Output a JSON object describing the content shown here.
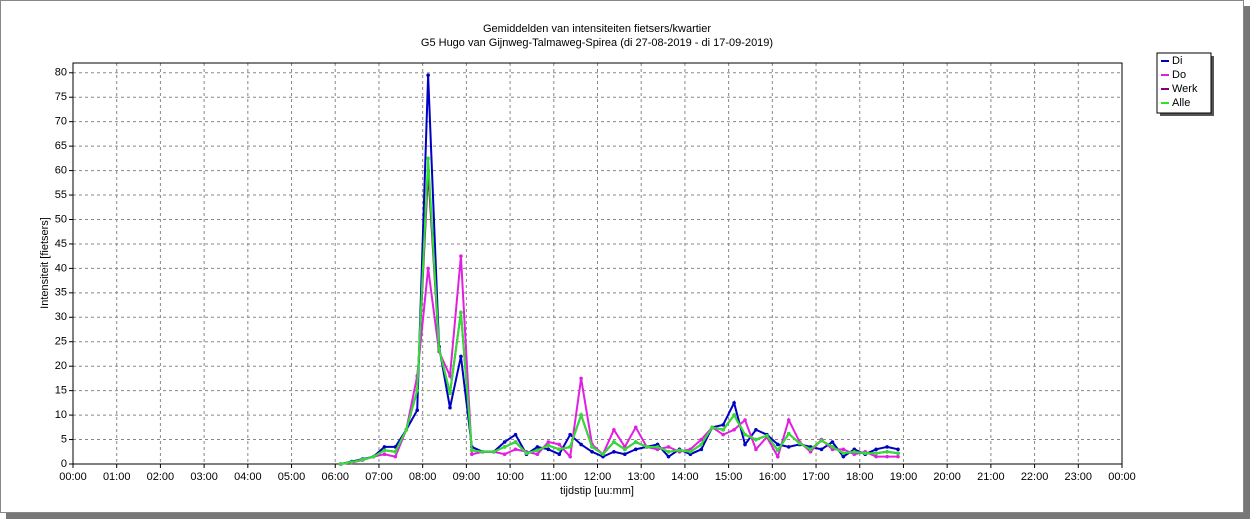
{
  "chart_data": {
    "type": "line",
    "title": "Gemiddelden van intensiteiten fietsers/kwartier",
    "subtitle": "G5 Hugo van Gijnweg-Talmaweg-Spirea (di 27-08-2019 - di 17-09-2019)",
    "xlabel": "tijdstip [uu:mm]",
    "ylabel": "Intensiteit [fietsers]",
    "x": [
      6.125,
      6.375,
      6.625,
      6.875,
      7.125,
      7.375,
      7.625,
      7.875,
      8.125,
      8.375,
      8.625,
      8.875,
      9.125,
      9.375,
      9.625,
      9.875,
      10.125,
      10.375,
      10.625,
      10.875,
      11.125,
      11.375,
      11.625,
      11.875,
      12.125,
      12.375,
      12.625,
      12.875,
      13.125,
      13.375,
      13.625,
      13.875,
      14.125,
      14.375,
      14.625,
      14.875,
      15.125,
      15.375,
      15.625,
      15.875,
      16.125,
      16.375,
      16.625,
      16.875,
      17.125,
      17.375,
      17.625,
      17.875,
      18.125,
      18.375,
      18.625,
      18.875
    ],
    "series": [
      {
        "name": "Werk",
        "color": "#800080",
        "values": [
          0,
          0.4,
          0.9,
          1.5,
          2.8,
          2.5,
          7,
          15,
          60,
          23.5,
          14.5,
          31,
          2.8,
          2.5,
          2.5,
          3.5,
          4.5,
          2.2,
          2.8,
          3.8,
          3,
          3.5,
          10,
          3.5,
          2,
          4.5,
          3,
          4.5,
          3.5,
          3.5,
          2.5,
          2.8,
          2.5,
          4,
          7.5,
          7,
          10,
          6,
          5,
          5.8,
          2.8,
          6.2,
          4.2,
          3,
          4.8,
          3.5,
          2.2,
          2.5,
          2.2,
          2.2,
          2.5,
          2.2
        ]
      },
      {
        "name": "Di",
        "color": "#0000c0",
        "values": [
          0,
          0.5,
          1,
          1.5,
          3.5,
          3.5,
          7,
          11,
          79.5,
          24,
          11.5,
          22,
          3.5,
          2.5,
          2.5,
          4.5,
          6,
          2,
          3.5,
          3,
          2,
          6,
          4,
          2.5,
          1.5,
          2.5,
          2,
          3,
          3.5,
          4,
          1.5,
          3,
          2,
          3,
          7.5,
          8,
          12.5,
          4,
          7,
          6,
          4,
          3.5,
          4,
          3.5,
          3,
          4.5,
          1.5,
          3,
          2,
          3,
          3.5,
          3
        ]
      },
      {
        "name": "Do",
        "color": "#e020e0",
        "values": [
          0,
          0.3,
          0.8,
          1.5,
          2,
          1.5,
          7,
          18,
          40,
          23,
          18,
          42.5,
          2,
          2.5,
          2.5,
          2,
          3,
          2.5,
          2,
          4.5,
          4,
          1.5,
          17.5,
          4,
          2,
          7,
          3.5,
          7.5,
          3.5,
          3,
          3.5,
          2.5,
          3,
          5,
          7.5,
          6,
          7,
          9,
          3,
          5.5,
          1.5,
          9,
          4.5,
          2.5,
          5,
          3,
          3,
          2,
          2.5,
          1.5,
          1.5,
          1.5
        ]
      },
      {
        "name": "Alle",
        "color": "#30e030",
        "values": [
          0,
          0.4,
          0.9,
          1.5,
          2.8,
          2.5,
          7,
          15,
          62.5,
          23.5,
          14.5,
          31,
          2.8,
          2.5,
          2.5,
          3.5,
          4.5,
          2.2,
          2.8,
          3.8,
          3,
          3.5,
          10,
          3.5,
          2,
          4.5,
          3,
          4.5,
          3.5,
          3.5,
          2.5,
          2.8,
          2.5,
          4,
          7.5,
          7,
          10,
          6,
          5,
          5.8,
          2.8,
          6.2,
          4.2,
          3,
          4.8,
          3.5,
          2.2,
          2.5,
          2.2,
          2.2,
          2.5,
          2.2
        ]
      }
    ],
    "legend_order": [
      "Di",
      "Do",
      "Werk",
      "Alle"
    ],
    "xlim": [
      0,
      24
    ],
    "xticks": [
      {
        "value": 0,
        "label": "00:00"
      },
      {
        "value": 1,
        "label": "01:00"
      },
      {
        "value": 2,
        "label": "02:00"
      },
      {
        "value": 3,
        "label": "03:00"
      },
      {
        "value": 4,
        "label": "04:00"
      },
      {
        "value": 5,
        "label": "05:00"
      },
      {
        "value": 6,
        "label": "06:00"
      },
      {
        "value": 7,
        "label": "07:00"
      },
      {
        "value": 8,
        "label": "08:00"
      },
      {
        "value": 9,
        "label": "09:00"
      },
      {
        "value": 10,
        "label": "10:00"
      },
      {
        "value": 11,
        "label": "11:00"
      },
      {
        "value": 12,
        "label": "12:00"
      },
      {
        "value": 13,
        "label": "13:00"
      },
      {
        "value": 14,
        "label": "14:00"
      },
      {
        "value": 15,
        "label": "15:00"
      },
      {
        "value": 16,
        "label": "16:00"
      },
      {
        "value": 17,
        "label": "17:00"
      },
      {
        "value": 18,
        "label": "18:00"
      },
      {
        "value": 19,
        "label": "19:00"
      },
      {
        "value": 20,
        "label": "20:00"
      },
      {
        "value": 21,
        "label": "21:00"
      },
      {
        "value": 22,
        "label": "22:00"
      },
      {
        "value": 23,
        "label": "23:00"
      },
      {
        "value": 24,
        "label": "00:00"
      }
    ],
    "ylim": [
      0,
      82
    ],
    "yticks": [
      0,
      5,
      10,
      15,
      20,
      25,
      30,
      35,
      40,
      45,
      50,
      55,
      60,
      65,
      70,
      75,
      80
    ],
    "grid": true,
    "legend": "right"
  }
}
